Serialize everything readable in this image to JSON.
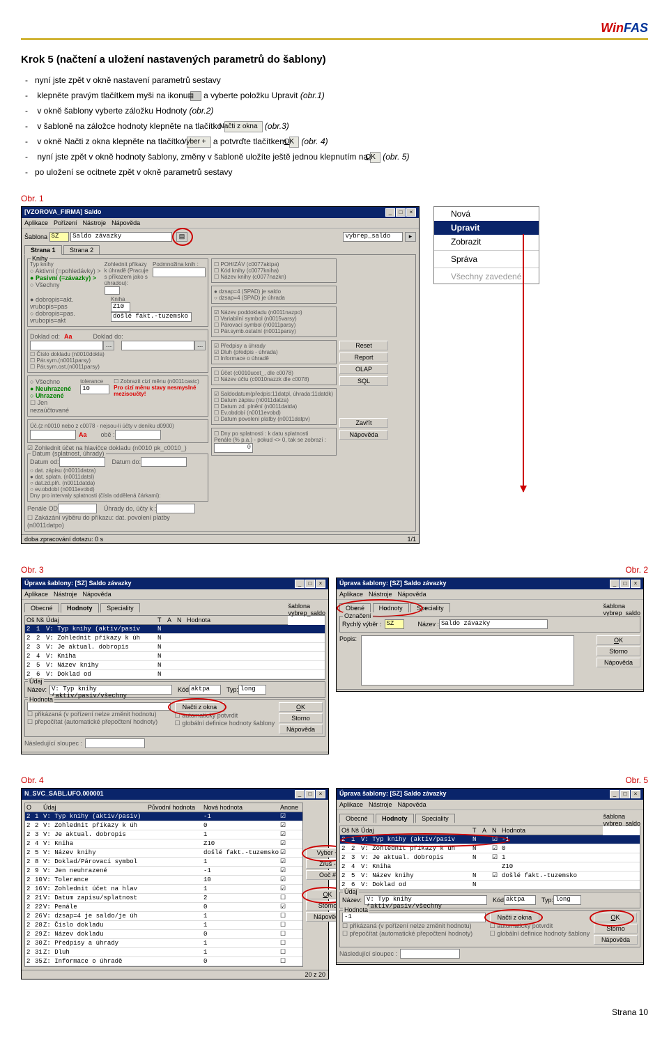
{
  "header": {
    "logo_win": "Win",
    "logo_fas": "FAS"
  },
  "title": "Krok 5 (načtení a uložení nastavených parametrů do šablony)",
  "bullets": {
    "b1_pre": "nyní jste zpět v okně nastavení parametrů sestavy",
    "b2_pre": "klepněte pravým tlačítkem myši na ikonu ",
    "b2_post": " a vyberte položku Upravit ",
    "b2_obr": "(obr.1)",
    "b3_pre": "v okně šablony vyberte záložku Hodnoty ",
    "b3_obr": "(obr.2)",
    "b4_pre": "v šabloně na záložce hodnoty klepněte na tlačítko ",
    "b4_btn": "Načti z okna",
    "b4_obr": " (obr.3)",
    "b5_pre": " v okně Načti z okna klepněte na tlačítko ",
    "b5_btn": "Vyber  +",
    "b5_mid": " a potvrďte tlačítkem ",
    "b5_btn2_u": "O",
    "b5_btn2_r": "K",
    "b5_obr": " (obr. 4)",
    "b6_pre": "nyní jste zpět v okně hodnoty šablony, změny v šabloně uložíte ještě jednou klepnutím na ",
    "b6_btn_u": "O",
    "b6_btn_r": "K",
    "b6_obr": " (obr. 5)",
    "b7": "po uložení se ocitnete zpět v okně parametrů sestavy"
  },
  "labels": {
    "obr1": "Obr. 1",
    "obr2": "Obr. 2",
    "obr3": "Obr. 3",
    "obr4": "Obr. 4",
    "obr5": "Obr. 5"
  },
  "ctxmenu": {
    "m1": "Nová",
    "m2": "Upravit",
    "m3": "Zobrazit",
    "m4": "Správa",
    "m5": "Všechny zavedené"
  },
  "fig1": {
    "title": "[VZOROVA_FIRMA] Saldo",
    "menu1": "Aplikace",
    "menu2": "Pořízení",
    "menu3": "Nástroje",
    "menu4": "Nápověda",
    "sablona_lbl": "Šablona",
    "sablona_code": "SZ",
    "sablona_name": "Saldo závazky",
    "vybrep": "vybrep_saldo",
    "tab1": "Strana 1",
    "tab2": "Strana 2",
    "knihy_lbl": "Knihy",
    "typ_lbl": "Typ knihy",
    "r_aktivni": "Aktivní (=pohledávky) >",
    "r_pasivni": "Pasivní (=závazky) >",
    "r_vsechny": "Všechny",
    "zohl": "Zohlednit příkazy k úhradě (Pracuje s příkazem jako s úhradou):",
    "podmn": "Podmnožina knih :",
    "c_poh": "POH/ZÁV (c0077aktpa)",
    "c_kod": "Kód knihy (c0077kniha)",
    "c_naz": "Název knihy (c0077nazkn)",
    "r_dobrw": "dobropis=akt. vrubopis=pas",
    "r_dobrp": "dobropis=pas. vrubopis=akt",
    "kniha_lbl": "Kniha",
    "kniha_val": "Z10",
    "kniha_txt": "došlé fakt.-tuzemsko",
    "r_dzsp4s": "dzsap=4 (SPAD) je saldo",
    "r_dzsp4u": "dzsap=4 (SPAD) je úhrada",
    "doklad_od": "Doklad od:",
    "aa": "Aa",
    "doklad_do": "Doklad do:",
    "cd1": "Číslo dokladu (n0010dokla)",
    "cd2": "Pár.sym.(n0011parsy)",
    "cd3": "Pár.sym.ost.(n0011parsy)",
    "nd1": "Název poddokladu (n0011nazpo)",
    "nd2": "Variabilní symbol (n0015varsy)",
    "nd3": "Párovací symbol (n0011parsy)",
    "nd4": "Pár.symb.ostatní (n0011parsy)",
    "vsechno": "Všechno",
    "neuhrazene": "Neuhrazené",
    "uhrazene": "Uhrazené",
    "tol_lbl": "tolerance",
    "tol_val": "10",
    "zobr_cizi": "Zobrazit cizí měnu (n0011castc)",
    "pro_ciz": "Pro cizí měnu stavy nesmyslné mezisoučty!",
    "pred": "Předpisy a úhrady",
    "dluh": "Dluh (předpis - úhrada)",
    "inf": "Informace o úhradě",
    "jen_n": "Jen nezaúčtované",
    "u_note": "Úč.(z n0010 nebo z c0078 - nejsou-li účty v deníku d0900)",
    "u_aa": "Aa",
    "u_obs": "obě :",
    "u1": "Účet (c0010ucet_, dle c0078)",
    "u2": "Název účtu (c0010nazzk dle c0078)",
    "zohl_ucet": "Zohlednit účet na hlavičce dokladu (n0010 pk_c0010_)",
    "ds_lbl": "Datum (splatnost, úhrady)",
    "datum_od": "Datum od:",
    "datum_do": "Datum do:",
    "d1": "dat. zápisu (n0011datza)",
    "d2": "dat. splatn. (n0011datsl)",
    "d3": "dat.zd.plň. (n0011datda)",
    "d4": "ev.období (n0011evobd)",
    "d5": "Dny pro intervaly splatnosti (čísla oddělená čárkami):",
    "s1": "Saldodatum(předpis:11datpl, úhrada:11datdk)",
    "s2": "Datum zápisu (n0011datza)",
    "s3": "Datum zd. plnění (n0011datda)",
    "s4": "Ev.období (n0011evobd)",
    "s5": "Datum povolení platby (n0011datpv)",
    "penale_od": "Penále OD",
    "uhrady_do": "Úhrady do, účty k :",
    "p1": "Dny po splatnosti : k datu splatnosti",
    "p2": "Penále (% p.a.) - pokud <> 0, tak se zobrazí :",
    "zak_lbl": "Zakázání výběru do příkazu: dat. povolení platby (n0011datpo)",
    "btn_reset": "Reset",
    "btn_report": "Report",
    "btn_olap": "OLAP",
    "btn_sql": "SQL",
    "btn_zavrit": "Zavřít",
    "btn_napov": "Nápověda",
    "status_l": "doba zpracování dotazu: 0 s",
    "status_r": "1/1"
  },
  "fig3": {
    "title": "Úprava šablony: [SZ] Saldo závazky",
    "menu1": "Aplikace",
    "menu2": "Nástroje",
    "menu3": "Nápověda",
    "tab_ob": "Obecné",
    "tab_hod": "Hodnoty",
    "tab_sp": "Speciality",
    "sab_lbl": "šablona",
    "sab_val": "vybrep_saldo",
    "h_os": "Oš",
    "h_ns": "Nš",
    "h_udaj": "Údaj",
    "h_t": "T",
    "h_a": "A",
    "h_n": "N",
    "h_hod": "Hodnota",
    "r1_a": "2",
    "r1_b": "1",
    "r1_c": "V: Typ knihy (aktiv/pasiv",
    "r1_t": "N",
    "r2_a": "2",
    "r2_b": "2",
    "r2_c": "V: Zohlednit příkazy k úh",
    "r2_t": "N",
    "r3_a": "2",
    "r3_b": "3",
    "r3_c": "V: Je aktual. dobropis",
    "r3_t": "N",
    "r4_a": "2",
    "r4_b": "4",
    "r4_c": "V: Kniha",
    "r4_t": "N",
    "r5_a": "2",
    "r5_b": "5",
    "r5_c": "V: Název knihy",
    "r5_t": "N",
    "r6_a": "2",
    "r6_b": "6",
    "r6_c": "V: Doklad od",
    "r6_t": "N",
    "udaj_lbl": "Údaj",
    "nazev_lbl": "Název:",
    "nazev_val": "V: Typ knihy (aktiv/pasiv/všechny",
    "kod_lbl": "Kód",
    "kod_val": "aktpa",
    "typ_lbl": "Typ:",
    "typ_val": "long",
    "hodnota_lbl": "Hodnota",
    "c_prik": "přikázaná (v pořízení nelze změnit hodnotu)",
    "c_prep": "přepočítat (automatické přepočtení hodnoty)",
    "c_auto": "automaticky potvrdit",
    "c_glob": "globální definice hodnoty šablony",
    "nasl_lbl": "Následující sloupec :",
    "btn_nzok": "Načti z okna",
    "btn_ok_u": "O",
    "btn_ok_r": "K",
    "btn_storno": "Storno",
    "btn_nap": "Nápověda"
  },
  "fig2": {
    "title": "Úprava šablony: [SZ] Saldo závazky",
    "ozn_lbl": "Označení",
    "rv_lbl": "Rychlý výběr :",
    "rv_code": "SZ",
    "naz_lbl": "Název :",
    "naz_val": "Saldo závazky",
    "popis_lbl": "Popis:"
  },
  "fig4": {
    "title": "N_SVC_SABL.UFO.000001",
    "h_o": "O",
    "h_udaj": "Údaj",
    "h_puv": "Původní hodnota",
    "h_nova": "Nová hodnota",
    "h_an": "Anone",
    "rows": [
      [
        "2",
        "1",
        "V: Typ knihy (aktiv/pasiv)",
        "",
        "-1",
        "X"
      ],
      [
        "2",
        "2",
        "V: Zohlednit příkazy k úh",
        "",
        "0",
        "X"
      ],
      [
        "2",
        "3",
        "V: Je aktual. dobropis",
        "",
        "1",
        "X"
      ],
      [
        "2",
        "4",
        "V: Kniha",
        "",
        "Z10",
        "X"
      ],
      [
        "2",
        "5",
        "V: Název knihy",
        "",
        "došlé fakt.-tuzemsko",
        "X"
      ],
      [
        "2",
        "8",
        "V: Doklad/Párovací symbol",
        "",
        "1",
        "X"
      ],
      [
        "2",
        "9",
        "V: Jen neuhrazené",
        "",
        "-1",
        "X"
      ],
      [
        "2",
        "10",
        "V: Tolerance",
        "",
        "10",
        "X"
      ],
      [
        "2",
        "16",
        "V: Zohlednit účet na hlav",
        "",
        "1",
        "X"
      ],
      [
        "2",
        "21",
        "V: Datum zapisu/splatnost",
        "",
        "2",
        ""
      ],
      [
        "2",
        "22",
        "V: Penále",
        "",
        "0",
        "X"
      ],
      [
        "2",
        "26",
        "V: dzsap=4 je saldo/je úh",
        "",
        "1",
        ""
      ],
      [
        "2",
        "28",
        "Z: Číslo dokladu",
        "",
        "1",
        ""
      ],
      [
        "2",
        "29",
        "Z: Název dokladu",
        "",
        "0",
        ""
      ],
      [
        "2",
        "30",
        "Z: Předpisy a úhrady",
        "",
        "1",
        ""
      ],
      [
        "2",
        "31",
        "Z: Dluh",
        "",
        "1",
        ""
      ],
      [
        "2",
        "35",
        "Z: Informace o úhradě",
        "",
        "0",
        ""
      ]
    ],
    "btn_vyb": "Vyber  +",
    "btn_zrus": "Zruš   -",
    "btn_ooc": "Ooč   #",
    "btn_ok_u": "O",
    "btn_ok_r": "K",
    "btn_storno": "Storno",
    "btn_nap": "Nápověda",
    "status": "20 z 20"
  },
  "fig5": {
    "title": "Úprava šablony: [SZ] Saldo závazky",
    "rows": [
      [
        "2",
        "1",
        "V: Typ knihy (aktiv/pasiv",
        "N",
        "X",
        "-1"
      ],
      [
        "2",
        "2",
        "V: Zohlednit příkazy k úh",
        "N",
        "X",
        "0"
      ],
      [
        "2",
        "3",
        "V: Je aktual. dobropis",
        "N",
        "X",
        "1"
      ],
      [
        "2",
        "4",
        "V: Kniha",
        "",
        "",
        "Z10"
      ],
      [
        "2",
        "5",
        "V: Název knihy",
        "N",
        "X",
        "došlé fakt.-tuzemsko"
      ],
      [
        "2",
        "6",
        "V: Doklad od",
        "N",
        "",
        ""
      ]
    ],
    "hval": "-1"
  },
  "footer": "Strana 10"
}
